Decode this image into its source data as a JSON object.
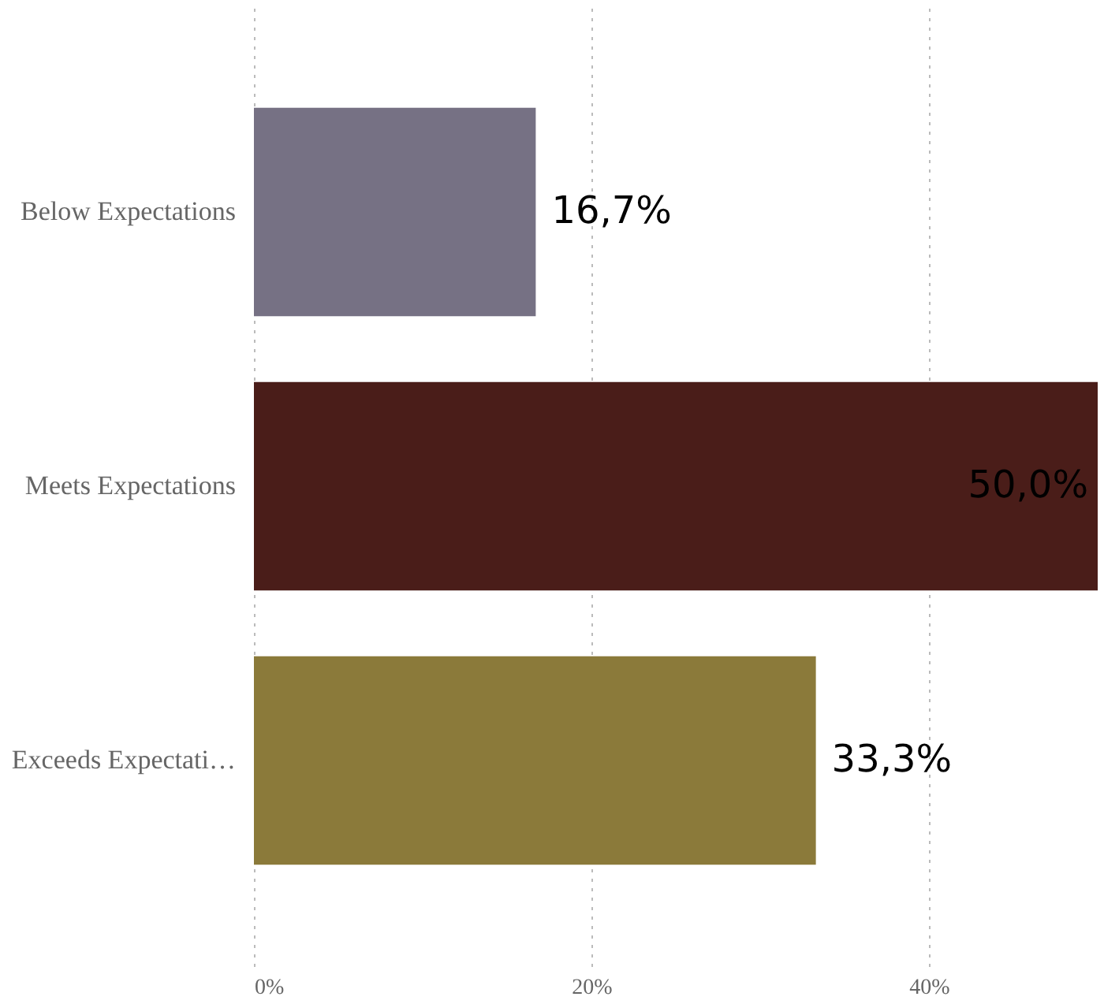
{
  "chart_data": {
    "type": "bar",
    "orientation": "horizontal",
    "categories": [
      "Below Expectations",
      "Meets Expectations",
      "Exceeds Expectati…"
    ],
    "values": [
      16.7,
      50.0,
      33.3
    ],
    "colors": [
      "#767184",
      "#4a1d19",
      "#8b7a3a"
    ],
    "value_labels": [
      "16,7%",
      "50,0%",
      "33,3%"
    ],
    "xlim": [
      0,
      50
    ],
    "xticks": [
      {
        "value": 0,
        "label": "0%"
      },
      {
        "value": 20,
        "label": "20%"
      },
      {
        "value": 40,
        "label": "40%"
      }
    ],
    "grid": "x",
    "legend": false
  }
}
